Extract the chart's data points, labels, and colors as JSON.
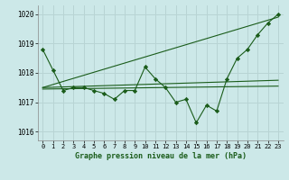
{
  "title": "Graphe pression niveau de la mer (hPa)",
  "bg_color": "#cce8e8",
  "grid_color": "#b8d4d4",
  "line_color": "#1a5c1a",
  "marker_color": "#1a5c1a",
  "xlim": [
    -0.5,
    23.5
  ],
  "ylim": [
    1015.7,
    1020.3
  ],
  "yticks": [
    1016,
    1017,
    1018,
    1019,
    1020
  ],
  "xticks": [
    0,
    1,
    2,
    3,
    4,
    5,
    6,
    7,
    8,
    9,
    10,
    11,
    12,
    13,
    14,
    15,
    16,
    17,
    18,
    19,
    20,
    21,
    22,
    23
  ],
  "series": [
    {
      "x": [
        0,
        1,
        2,
        3,
        4,
        5,
        6,
        7,
        8,
        9,
        10,
        11,
        12,
        13,
        14,
        15,
        16,
        17,
        18,
        19,
        20,
        21,
        22,
        23
      ],
      "y": [
        1018.8,
        1018.1,
        1017.4,
        1017.5,
        1017.5,
        1017.4,
        1017.3,
        1017.1,
        1017.4,
        1017.4,
        1018.2,
        1017.8,
        1017.5,
        1017.0,
        1017.1,
        1016.3,
        1016.9,
        1016.7,
        1017.8,
        1018.5,
        1018.8,
        1019.3,
        1019.7,
        1020.0
      ],
      "has_markers": true
    },
    {
      "x": [
        0,
        23
      ],
      "y": [
        1017.5,
        1017.75
      ],
      "has_markers": false
    },
    {
      "x": [
        0,
        23
      ],
      "y": [
        1017.5,
        1019.9
      ],
      "has_markers": false
    },
    {
      "x": [
        0,
        23
      ],
      "y": [
        1017.45,
        1017.55
      ],
      "has_markers": false
    }
  ]
}
